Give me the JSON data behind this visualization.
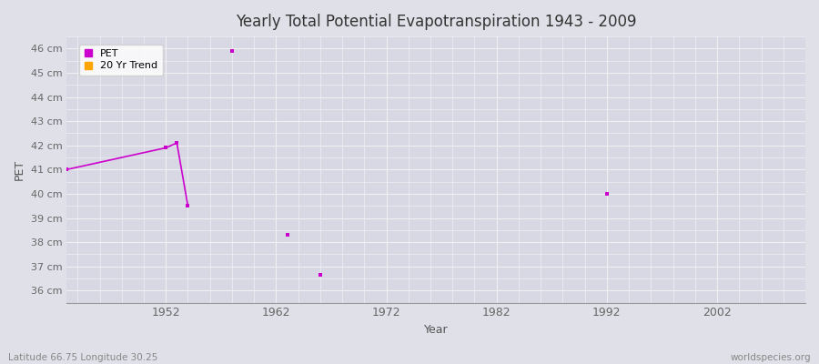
{
  "title": "Yearly Total Potential Evapotranspiration 1943 - 2009",
  "xlabel": "Year",
  "ylabel": "PET",
  "subtitle_left": "Latitude 66.75 Longitude 30.25",
  "subtitle_right": "worldspecies.org",
  "background_color": "#e0e0e8",
  "plot_bg_color": "#d8d8e4",
  "grid_color": "#f0f0f4",
  "ylim": [
    35.5,
    46.5
  ],
  "xlim": [
    1943,
    2010
  ],
  "yticks": [
    36,
    37,
    38,
    39,
    40,
    41,
    42,
    43,
    44,
    45,
    46
  ],
  "ytick_labels": [
    "36 cm",
    "37 cm",
    "38 cm",
    "39 cm",
    "40 cm",
    "41 cm",
    "42 cm",
    "43 cm",
    "44 cm",
    "45 cm",
    "46 cm"
  ],
  "xticks": [
    1952,
    1962,
    1972,
    1982,
    1992,
    2002
  ],
  "pet_color": "#cc00cc",
  "trend_color": "#ffa500",
  "legend_pet_label": "PET",
  "legend_trend_label": "20 Yr Trend",
  "segments": [
    [
      [
        1943,
        41.0
      ],
      [
        1952,
        41.9
      ],
      [
        1953,
        42.1
      ],
      [
        1954,
        39.5
      ]
    ]
  ],
  "isolated_points": [
    [
      1958,
      45.9
    ],
    [
      1963,
      38.3
    ],
    [
      1966,
      36.65
    ],
    [
      1992,
      40.0
    ]
  ]
}
